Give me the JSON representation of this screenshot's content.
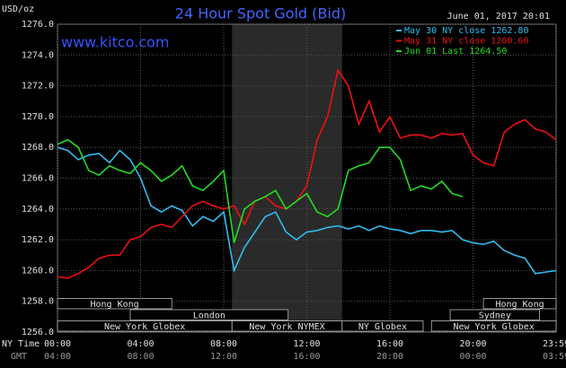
{
  "chart_data": {
    "type": "line",
    "title": "24 Hour Spot Gold (Bid)",
    "subtitle": "www.kitco.com",
    "y_label": "USD/oz",
    "timestamp": "June 01, 2017 20:01",
    "x_row_label": "NY Time",
    "x2_row_label": "GMT",
    "x": [
      0,
      0.5,
      1,
      1.5,
      2,
      2.5,
      3,
      3.5,
      4,
      4.5,
      5,
      5.5,
      6,
      6.5,
      7,
      7.5,
      8,
      8.5,
      9,
      9.5,
      10,
      10.5,
      11,
      11.5,
      12,
      12.5,
      13,
      13.5,
      14,
      14.5,
      15,
      15.5,
      16,
      16.5,
      17,
      17.5,
      18,
      18.5,
      19,
      19.5,
      20,
      20.5,
      21,
      21.5,
      22,
      22.5,
      23,
      23.5,
      24
    ],
    "series": [
      {
        "name": "May 30 NY close 1262.80",
        "color": "#33bbee",
        "values": [
          1268.0,
          1267.8,
          1267.2,
          1267.5,
          1267.6,
          1267.0,
          1267.8,
          1267.2,
          1266.0,
          1264.2,
          1263.8,
          1264.2,
          1263.9,
          1262.9,
          1263.5,
          1263.2,
          1263.8,
          1260.0,
          1261.5,
          1262.5,
          1263.5,
          1263.8,
          1262.5,
          1262.0,
          1262.5,
          1262.6,
          1262.8,
          1262.9,
          1262.7,
          1262.9,
          1262.6,
          1262.9,
          1262.7,
          1262.6,
          1262.4,
          1262.6,
          1262.6,
          1262.5,
          1262.6,
          1262.0,
          1261.8,
          1261.7,
          1261.9,
          1261.3,
          1261.0,
          1260.8,
          1259.8,
          1259.9,
          1260.0
        ]
      },
      {
        "name": "May 31 NY close 1260.60",
        "color": "#ee1111",
        "values": [
          1259.6,
          1259.5,
          1259.8,
          1260.2,
          1260.8,
          1261.0,
          1261.0,
          1262.0,
          1262.2,
          1262.8,
          1263.0,
          1262.8,
          1263.5,
          1264.2,
          1264.5,
          1264.2,
          1264.0,
          1264.2,
          1263.0,
          1264.5,
          1264.8,
          1264.2,
          1264.0,
          1264.5,
          1265.5,
          1268.5,
          1270.0,
          1273.0,
          1272.0,
          1269.5,
          1271.0,
          1269.0,
          1270.0,
          1268.6,
          1268.8,
          1268.8,
          1268.6,
          1268.9,
          1268.8,
          1268.9,
          1267.5,
          1267.0,
          1266.8,
          1269.0,
          1269.5,
          1269.8,
          1269.2,
          1269.0,
          1268.5
        ]
      },
      {
        "name": "Jun 01 Last 1264.50",
        "color": "#22dd22",
        "values": [
          1268.2,
          1268.5,
          1268.0,
          1266.5,
          1266.2,
          1266.8,
          1266.5,
          1266.3,
          1267.0,
          1266.5,
          1265.8,
          1266.2,
          1266.8,
          1265.5,
          1265.2,
          1265.8,
          1266.5,
          1261.8,
          1264.0,
          1264.5,
          1264.8,
          1265.2,
          1264.0,
          1264.5,
          1265.0,
          1263.8,
          1263.5,
          1264.0,
          1266.5,
          1266.8,
          1267.0,
          1268.0,
          1268.0,
          1267.2,
          1265.2,
          1265.5,
          1265.3,
          1265.8,
          1265.0,
          1264.8,
          null,
          null,
          null,
          null,
          null,
          null,
          null,
          null,
          null
        ]
      }
    ],
    "xlim": [
      0,
      24
    ],
    "xticks": [
      {
        "value": 0,
        "label": "00:00"
      },
      {
        "value": 4,
        "label": "04:00"
      },
      {
        "value": 8,
        "label": "08:00"
      },
      {
        "value": 12,
        "label": "12:00"
      },
      {
        "value": 16,
        "label": "16:00"
      },
      {
        "value": 20,
        "label": "20:00"
      },
      {
        "value": 24,
        "label": "23:59"
      }
    ],
    "x2tick_labels": [
      "04:00",
      "08:00",
      "12:00",
      "16:00",
      "20:00",
      "00:00",
      "03:59"
    ],
    "ylim": [
      1256,
      1276
    ],
    "yticks": [
      {
        "value": 1256,
        "label": "1256.0"
      },
      {
        "value": 1258,
        "label": "1258.0"
      },
      {
        "value": 1260,
        "label": "1260.0"
      },
      {
        "value": 1262,
        "label": "1262.0"
      },
      {
        "value": 1264,
        "label": "1264.0"
      },
      {
        "value": 1266,
        "label": "1266.0"
      },
      {
        "value": 1268,
        "label": "1268.0"
      },
      {
        "value": 1270,
        "label": "1270.0"
      },
      {
        "value": 1272,
        "label": "1272.0"
      },
      {
        "value": 1274,
        "label": "1274.0"
      },
      {
        "value": 1276,
        "label": "1276.0"
      }
    ],
    "grid": true,
    "sessions": [
      {
        "label": "Hong Kong",
        "start": 0,
        "end": 5.5
      },
      {
        "label": "London",
        "start": 3.5,
        "end": 11.1
      },
      {
        "label": "New York Globex",
        "start": 0,
        "end": 8.4
      },
      {
        "label": "New York NYMEX",
        "start": 8.4,
        "end": 13.7
      },
      {
        "label": "NY Globex",
        "start": 13.7,
        "end": 17.6
      },
      {
        "label": "Hong Kong",
        "start": 20.5,
        "end": 24
      },
      {
        "label": "Sydney",
        "start": 18.9,
        "end": 23.2
      },
      {
        "label": "New York Globex",
        "start": 18,
        "end": 24
      }
    ]
  }
}
